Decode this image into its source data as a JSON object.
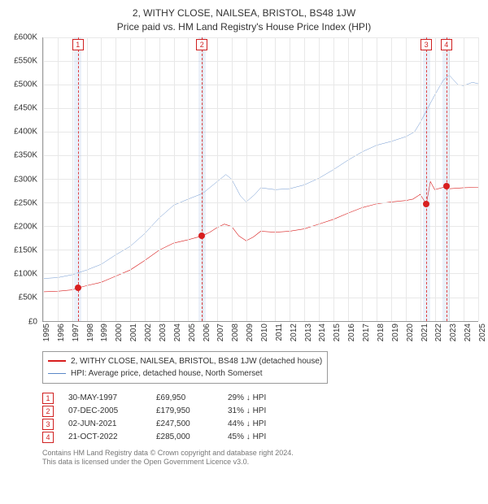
{
  "title": {
    "line1": "2, WITHY CLOSE, NAILSEA, BRISTOL, BS48 1JW",
    "line2": "Price paid vs. HM Land Registry's House Price Index (HPI)"
  },
  "title_fontsize": 12,
  "chart": {
    "type": "line",
    "background_color": "#ffffff",
    "grid_color": "#e8e8e8",
    "axis_color": "#999999",
    "ylim": [
      0,
      600000
    ],
    "ytick_step": 50000,
    "yticks": [
      "£0",
      "£50K",
      "£100K",
      "£150K",
      "£200K",
      "£250K",
      "£300K",
      "£350K",
      "£400K",
      "£450K",
      "£500K",
      "£550K",
      "£600K"
    ],
    "xlim": [
      1995,
      2025
    ],
    "xticks": [
      1995,
      1996,
      1997,
      1998,
      1999,
      2000,
      2001,
      2002,
      2003,
      2004,
      2005,
      2006,
      2007,
      2008,
      2009,
      2010,
      2011,
      2012,
      2013,
      2014,
      2015,
      2016,
      2017,
      2018,
      2019,
      2020,
      2021,
      2022,
      2023,
      2024,
      2025
    ],
    "tick_fontsize": 10,
    "series": [
      {
        "name": "property",
        "label": "2, WITHY CLOSE, NAILSEA, BRISTOL, BS48 1JW (detached house)",
        "color": "#d81e1e",
        "line_width": 2,
        "points": [
          [
            1995.0,
            62000
          ],
          [
            1996.0,
            63000
          ],
          [
            1997.0,
            66000
          ],
          [
            1997.4,
            69950
          ],
          [
            1998.0,
            75000
          ],
          [
            1999.0,
            82000
          ],
          [
            2000.0,
            95000
          ],
          [
            2001.0,
            108000
          ],
          [
            2002.0,
            128000
          ],
          [
            2003.0,
            150000
          ],
          [
            2004.0,
            165000
          ],
          [
            2005.0,
            172000
          ],
          [
            2005.95,
            179950
          ],
          [
            2006.5,
            188000
          ],
          [
            2007.0,
            198000
          ],
          [
            2007.5,
            205000
          ],
          [
            2008.0,
            200000
          ],
          [
            2008.5,
            180000
          ],
          [
            2009.0,
            170000
          ],
          [
            2009.5,
            178000
          ],
          [
            2010.0,
            190000
          ],
          [
            2011.0,
            188000
          ],
          [
            2012.0,
            190000
          ],
          [
            2013.0,
            195000
          ],
          [
            2014.0,
            205000
          ],
          [
            2015.0,
            215000
          ],
          [
            2016.0,
            228000
          ],
          [
            2017.0,
            240000
          ],
          [
            2018.0,
            248000
          ],
          [
            2019.0,
            252000
          ],
          [
            2020.0,
            255000
          ],
          [
            2020.5,
            258000
          ],
          [
            2021.0,
            268000
          ],
          [
            2021.42,
            247500
          ],
          [
            2021.7,
            295000
          ],
          [
            2022.0,
            278000
          ],
          [
            2022.5,
            282000
          ],
          [
            2022.8,
            285000
          ],
          [
            2023.0,
            280000
          ],
          [
            2024.0,
            282000
          ],
          [
            2025.0,
            283000
          ]
        ],
        "sale_dots": [
          {
            "x": 1997.4,
            "y": 69950
          },
          {
            "x": 2005.95,
            "y": 179950
          },
          {
            "x": 2021.42,
            "y": 247500
          },
          {
            "x": 2022.8,
            "y": 285000
          }
        ]
      },
      {
        "name": "hpi",
        "label": "HPI: Average price, detached house, North Somerset",
        "color": "#5a88c8",
        "line_width": 1.5,
        "points": [
          [
            1995.0,
            90000
          ],
          [
            1996.0,
            92000
          ],
          [
            1997.0,
            98000
          ],
          [
            1998.0,
            108000
          ],
          [
            1999.0,
            120000
          ],
          [
            2000.0,
            140000
          ],
          [
            2001.0,
            158000
          ],
          [
            2002.0,
            185000
          ],
          [
            2003.0,
            218000
          ],
          [
            2004.0,
            245000
          ],
          [
            2005.0,
            258000
          ],
          [
            2006.0,
            270000
          ],
          [
            2007.0,
            295000
          ],
          [
            2007.6,
            310000
          ],
          [
            2008.0,
            300000
          ],
          [
            2008.6,
            265000
          ],
          [
            2009.0,
            252000
          ],
          [
            2009.6,
            268000
          ],
          [
            2010.0,
            282000
          ],
          [
            2011.0,
            278000
          ],
          [
            2012.0,
            280000
          ],
          [
            2013.0,
            288000
          ],
          [
            2014.0,
            302000
          ],
          [
            2015.0,
            320000
          ],
          [
            2016.0,
            340000
          ],
          [
            2017.0,
            358000
          ],
          [
            2018.0,
            372000
          ],
          [
            2019.0,
            380000
          ],
          [
            2020.0,
            390000
          ],
          [
            2020.6,
            400000
          ],
          [
            2021.0,
            420000
          ],
          [
            2021.6,
            455000
          ],
          [
            2022.0,
            478000
          ],
          [
            2022.6,
            510000
          ],
          [
            2023.0,
            520000
          ],
          [
            2023.6,
            500000
          ],
          [
            2024.0,
            498000
          ],
          [
            2024.6,
            505000
          ],
          [
            2025.0,
            502000
          ]
        ]
      }
    ],
    "markers": [
      {
        "n": "1",
        "x": 1997.4,
        "band_width": 0.5
      },
      {
        "n": "2",
        "x": 2005.95,
        "band_width": 0.5
      },
      {
        "n": "3",
        "x": 2021.42,
        "band_width": 0.5
      },
      {
        "n": "4",
        "x": 2022.8,
        "band_width": 0.5
      }
    ],
    "marker_box_border": "#d02020",
    "marker_line_color": "#e04040",
    "marker_band_color": "rgba(120,160,220,0.15)",
    "dot_color": "#d81e1e"
  },
  "legend": {
    "items": [
      {
        "color": "#d81e1e",
        "width": 2,
        "label": "2, WITHY CLOSE, NAILSEA, BRISTOL, BS48 1JW (detached house)"
      },
      {
        "color": "#5a88c8",
        "width": 1.5,
        "label": "HPI: Average price, detached house, North Somerset"
      }
    ],
    "fontsize": 10,
    "border_color": "#999999"
  },
  "sales": [
    {
      "n": "1",
      "date": "30-MAY-1997",
      "price": "£69,950",
      "diff": "29% ↓ HPI"
    },
    {
      "n": "2",
      "date": "07-DEC-2005",
      "price": "£179,950",
      "diff": "31% ↓ HPI"
    },
    {
      "n": "3",
      "date": "02-JUN-2021",
      "price": "£247,500",
      "diff": "44% ↓ HPI"
    },
    {
      "n": "4",
      "date": "21-OCT-2022",
      "price": "£285,000",
      "diff": "45% ↓ HPI"
    }
  ],
  "footnote": {
    "line1": "Contains HM Land Registry data © Crown copyright and database right 2024.",
    "line2": "This data is licensed under the Open Government Licence v3.0."
  }
}
